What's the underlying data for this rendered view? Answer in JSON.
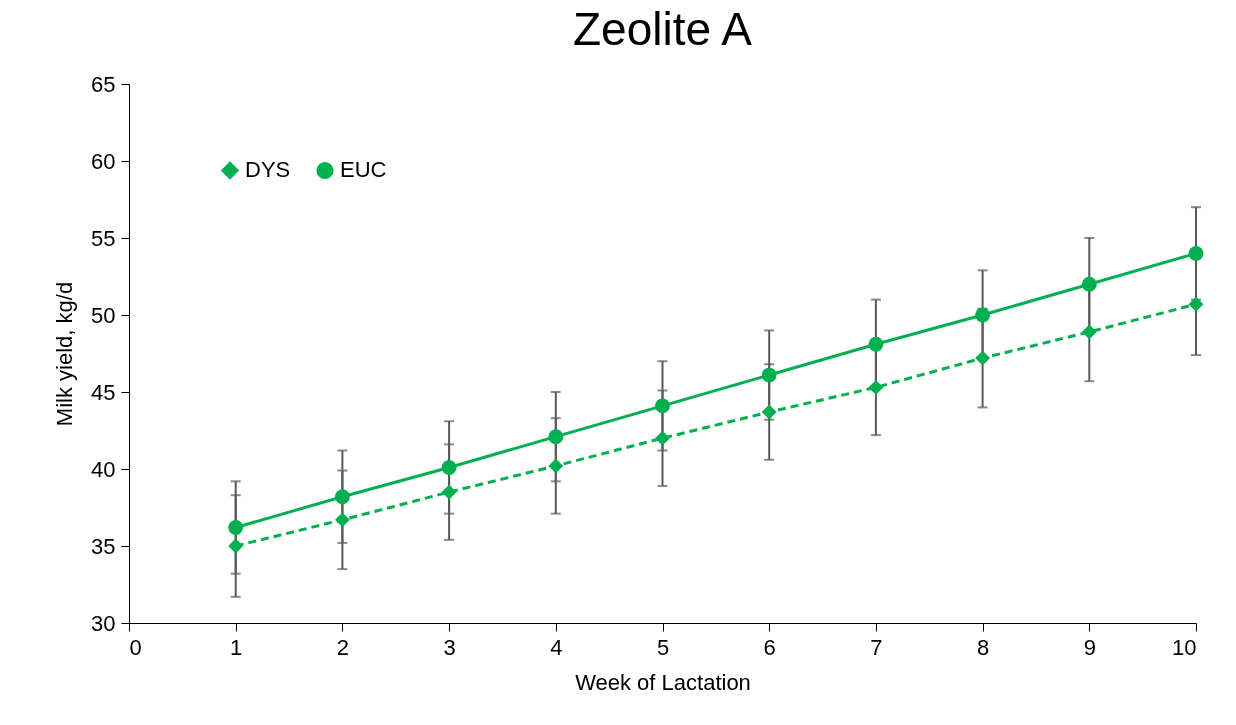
{
  "chart_data": {
    "type": "line",
    "title": "Zeolite A",
    "xlabel": "Week of Lactation",
    "ylabel": "Milk yield, kg/d",
    "x": [
      1,
      2,
      3,
      4,
      5,
      6,
      7,
      8,
      9,
      10
    ],
    "xlim": [
      0,
      10
    ],
    "xticks": [
      0,
      1,
      2,
      3,
      4,
      5,
      6,
      7,
      8,
      9,
      10
    ],
    "ylim": [
      30,
      65
    ],
    "yticks": [
      30,
      35,
      40,
      45,
      50,
      55,
      60,
      65
    ],
    "grid": false,
    "legend": "top left",
    "series": [
      {
        "name": "DYS",
        "color": "#00b050",
        "marker": "diamond",
        "line_style": "dashed",
        "values": [
          35.0,
          36.7,
          38.5,
          40.2,
          42.0,
          43.7,
          45.3,
          47.2,
          48.9,
          50.7
        ],
        "errors": [
          3.3,
          3.2,
          3.1,
          3.1,
          3.1,
          3.1,
          3.1,
          3.2,
          3.2,
          3.3
        ]
      },
      {
        "name": "EUC",
        "color": "#00b050",
        "marker": "circle",
        "line_style": "solid",
        "values": [
          36.2,
          38.2,
          40.1,
          42.1,
          44.1,
          46.1,
          48.1,
          50.0,
          52.0,
          54.0
        ],
        "errors": [
          3.0,
          3.0,
          3.0,
          2.9,
          2.9,
          2.9,
          2.9,
          2.9,
          3.0,
          3.0
        ]
      }
    ]
  }
}
